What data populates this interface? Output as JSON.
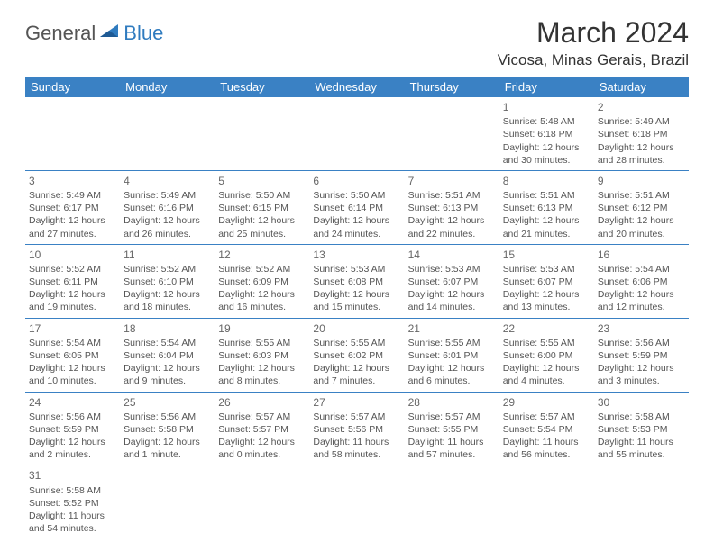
{
  "logo": {
    "part1": "General",
    "part2": "Blue"
  },
  "title": "March 2024",
  "location": "Vicosa, Minas Gerais, Brazil",
  "colors": {
    "header_bg": "#3a81c4",
    "header_text": "#ffffff",
    "cell_border": "#3a81c4",
    "logo_blue": "#2f7bbf",
    "text": "#555555"
  },
  "day_headers": [
    "Sunday",
    "Monday",
    "Tuesday",
    "Wednesday",
    "Thursday",
    "Friday",
    "Saturday"
  ],
  "weeks": [
    [
      null,
      null,
      null,
      null,
      null,
      {
        "n": "1",
        "sr": "Sunrise: 5:48 AM",
        "ss": "Sunset: 6:18 PM",
        "dl1": "Daylight: 12 hours",
        "dl2": "and 30 minutes."
      },
      {
        "n": "2",
        "sr": "Sunrise: 5:49 AM",
        "ss": "Sunset: 6:18 PM",
        "dl1": "Daylight: 12 hours",
        "dl2": "and 28 minutes."
      }
    ],
    [
      {
        "n": "3",
        "sr": "Sunrise: 5:49 AM",
        "ss": "Sunset: 6:17 PM",
        "dl1": "Daylight: 12 hours",
        "dl2": "and 27 minutes."
      },
      {
        "n": "4",
        "sr": "Sunrise: 5:49 AM",
        "ss": "Sunset: 6:16 PM",
        "dl1": "Daylight: 12 hours",
        "dl2": "and 26 minutes."
      },
      {
        "n": "5",
        "sr": "Sunrise: 5:50 AM",
        "ss": "Sunset: 6:15 PM",
        "dl1": "Daylight: 12 hours",
        "dl2": "and 25 minutes."
      },
      {
        "n": "6",
        "sr": "Sunrise: 5:50 AM",
        "ss": "Sunset: 6:14 PM",
        "dl1": "Daylight: 12 hours",
        "dl2": "and 24 minutes."
      },
      {
        "n": "7",
        "sr": "Sunrise: 5:51 AM",
        "ss": "Sunset: 6:13 PM",
        "dl1": "Daylight: 12 hours",
        "dl2": "and 22 minutes."
      },
      {
        "n": "8",
        "sr": "Sunrise: 5:51 AM",
        "ss": "Sunset: 6:13 PM",
        "dl1": "Daylight: 12 hours",
        "dl2": "and 21 minutes."
      },
      {
        "n": "9",
        "sr": "Sunrise: 5:51 AM",
        "ss": "Sunset: 6:12 PM",
        "dl1": "Daylight: 12 hours",
        "dl2": "and 20 minutes."
      }
    ],
    [
      {
        "n": "10",
        "sr": "Sunrise: 5:52 AM",
        "ss": "Sunset: 6:11 PM",
        "dl1": "Daylight: 12 hours",
        "dl2": "and 19 minutes."
      },
      {
        "n": "11",
        "sr": "Sunrise: 5:52 AM",
        "ss": "Sunset: 6:10 PM",
        "dl1": "Daylight: 12 hours",
        "dl2": "and 18 minutes."
      },
      {
        "n": "12",
        "sr": "Sunrise: 5:52 AM",
        "ss": "Sunset: 6:09 PM",
        "dl1": "Daylight: 12 hours",
        "dl2": "and 16 minutes."
      },
      {
        "n": "13",
        "sr": "Sunrise: 5:53 AM",
        "ss": "Sunset: 6:08 PM",
        "dl1": "Daylight: 12 hours",
        "dl2": "and 15 minutes."
      },
      {
        "n": "14",
        "sr": "Sunrise: 5:53 AM",
        "ss": "Sunset: 6:07 PM",
        "dl1": "Daylight: 12 hours",
        "dl2": "and 14 minutes."
      },
      {
        "n": "15",
        "sr": "Sunrise: 5:53 AM",
        "ss": "Sunset: 6:07 PM",
        "dl1": "Daylight: 12 hours",
        "dl2": "and 13 minutes."
      },
      {
        "n": "16",
        "sr": "Sunrise: 5:54 AM",
        "ss": "Sunset: 6:06 PM",
        "dl1": "Daylight: 12 hours",
        "dl2": "and 12 minutes."
      }
    ],
    [
      {
        "n": "17",
        "sr": "Sunrise: 5:54 AM",
        "ss": "Sunset: 6:05 PM",
        "dl1": "Daylight: 12 hours",
        "dl2": "and 10 minutes."
      },
      {
        "n": "18",
        "sr": "Sunrise: 5:54 AM",
        "ss": "Sunset: 6:04 PM",
        "dl1": "Daylight: 12 hours",
        "dl2": "and 9 minutes."
      },
      {
        "n": "19",
        "sr": "Sunrise: 5:55 AM",
        "ss": "Sunset: 6:03 PM",
        "dl1": "Daylight: 12 hours",
        "dl2": "and 8 minutes."
      },
      {
        "n": "20",
        "sr": "Sunrise: 5:55 AM",
        "ss": "Sunset: 6:02 PM",
        "dl1": "Daylight: 12 hours",
        "dl2": "and 7 minutes."
      },
      {
        "n": "21",
        "sr": "Sunrise: 5:55 AM",
        "ss": "Sunset: 6:01 PM",
        "dl1": "Daylight: 12 hours",
        "dl2": "and 6 minutes."
      },
      {
        "n": "22",
        "sr": "Sunrise: 5:55 AM",
        "ss": "Sunset: 6:00 PM",
        "dl1": "Daylight: 12 hours",
        "dl2": "and 4 minutes."
      },
      {
        "n": "23",
        "sr": "Sunrise: 5:56 AM",
        "ss": "Sunset: 5:59 PM",
        "dl1": "Daylight: 12 hours",
        "dl2": "and 3 minutes."
      }
    ],
    [
      {
        "n": "24",
        "sr": "Sunrise: 5:56 AM",
        "ss": "Sunset: 5:59 PM",
        "dl1": "Daylight: 12 hours",
        "dl2": "and 2 minutes."
      },
      {
        "n": "25",
        "sr": "Sunrise: 5:56 AM",
        "ss": "Sunset: 5:58 PM",
        "dl1": "Daylight: 12 hours",
        "dl2": "and 1 minute."
      },
      {
        "n": "26",
        "sr": "Sunrise: 5:57 AM",
        "ss": "Sunset: 5:57 PM",
        "dl1": "Daylight: 12 hours",
        "dl2": "and 0 minutes."
      },
      {
        "n": "27",
        "sr": "Sunrise: 5:57 AM",
        "ss": "Sunset: 5:56 PM",
        "dl1": "Daylight: 11 hours",
        "dl2": "and 58 minutes."
      },
      {
        "n": "28",
        "sr": "Sunrise: 5:57 AM",
        "ss": "Sunset: 5:55 PM",
        "dl1": "Daylight: 11 hours",
        "dl2": "and 57 minutes."
      },
      {
        "n": "29",
        "sr": "Sunrise: 5:57 AM",
        "ss": "Sunset: 5:54 PM",
        "dl1": "Daylight: 11 hours",
        "dl2": "and 56 minutes."
      },
      {
        "n": "30",
        "sr": "Sunrise: 5:58 AM",
        "ss": "Sunset: 5:53 PM",
        "dl1": "Daylight: 11 hours",
        "dl2": "and 55 minutes."
      }
    ],
    [
      {
        "n": "31",
        "sr": "Sunrise: 5:58 AM",
        "ss": "Sunset: 5:52 PM",
        "dl1": "Daylight: 11 hours",
        "dl2": "and 54 minutes."
      },
      null,
      null,
      null,
      null,
      null,
      null
    ]
  ]
}
